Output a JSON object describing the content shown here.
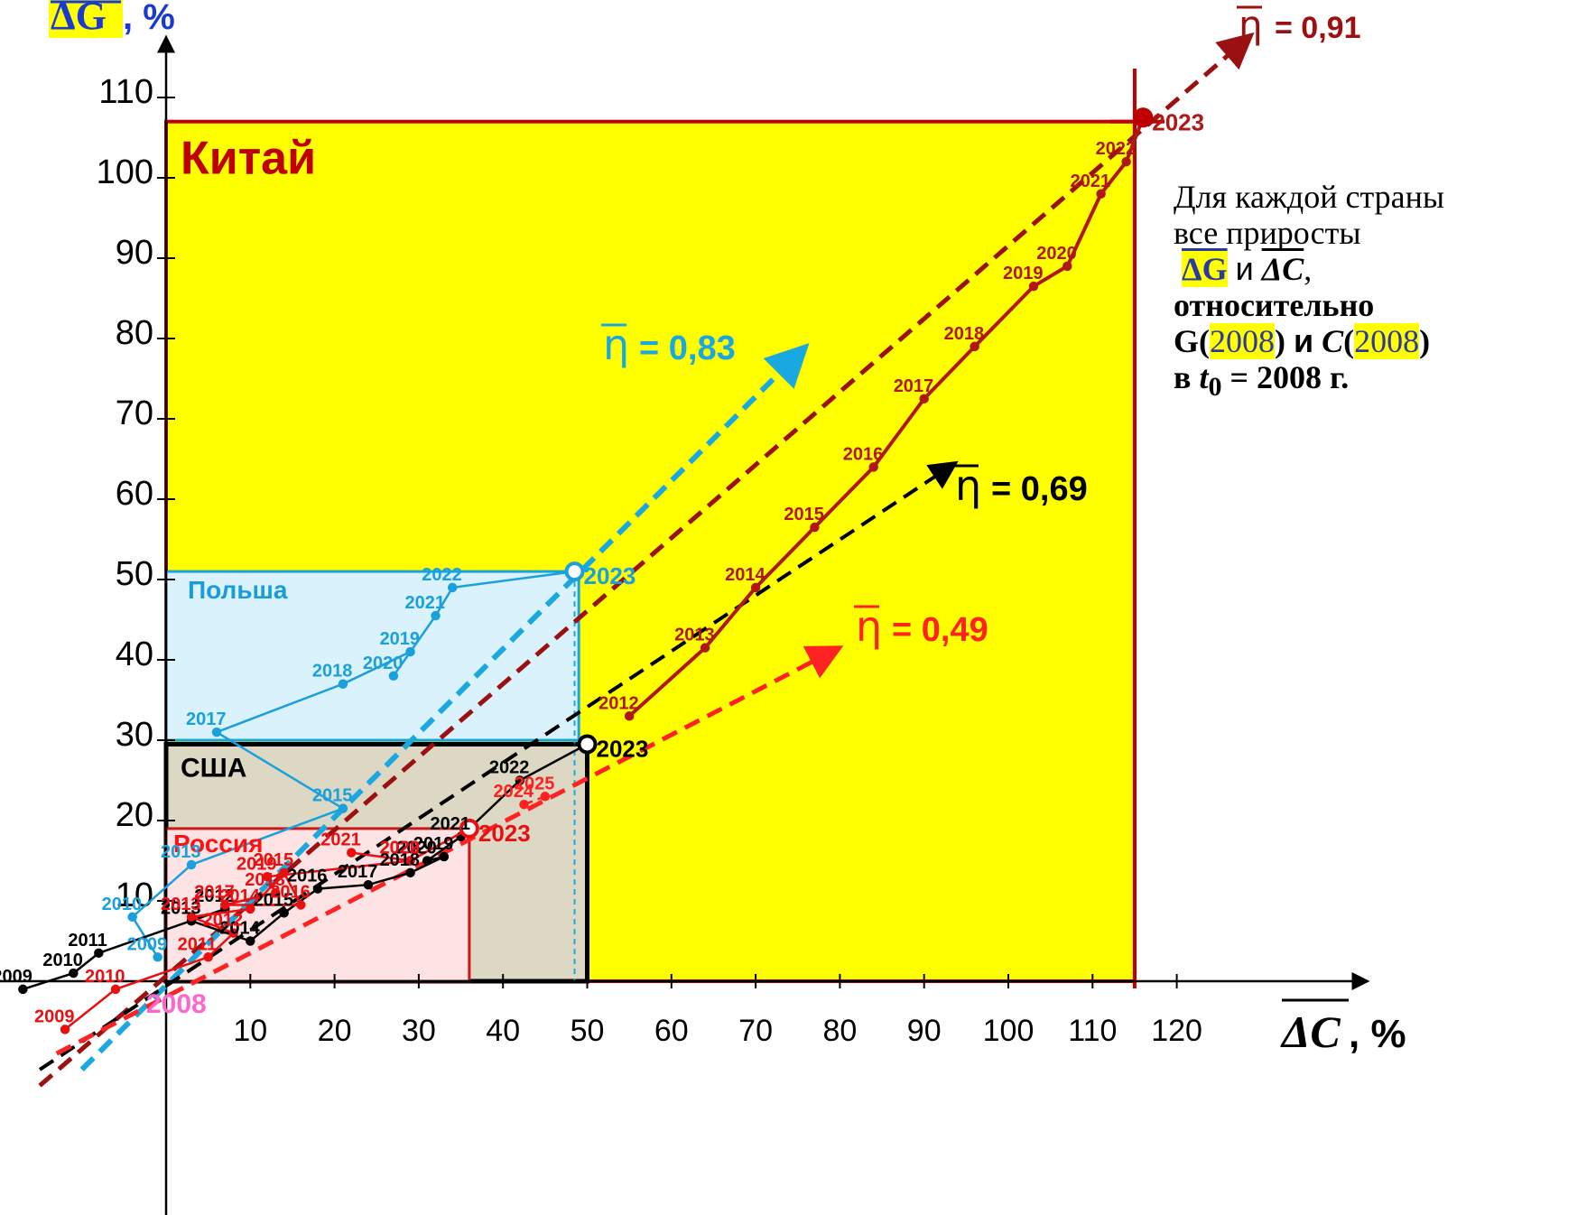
{
  "chart_data": {
    "type": "line",
    "xlabel": "ΔC, %",
    "ylabel": "ΔG, %",
    "xlim": [
      -20,
      135
    ],
    "ylim": [
      -11,
      120
    ],
    "x_ticks": [
      10,
      20,
      30,
      40,
      50,
      60,
      70,
      80,
      90,
      100,
      110,
      120
    ],
    "y_ticks": [
      10,
      20,
      30,
      40,
      50,
      60,
      70,
      80,
      90,
      100,
      110
    ],
    "base_year_label": "2008",
    "regions": [
      {
        "name": "Китай",
        "x": [
          0,
          115
        ],
        "y": [
          0,
          107
        ],
        "color": "#ffff00",
        "edge": "#c00000",
        "label_color": "#c00000"
      },
      {
        "name": "Польша",
        "x": [
          0,
          49
        ],
        "y": [
          30,
          51
        ],
        "color": "#d9f2fb",
        "edge": "#1aa3dc",
        "label_color": "#1a9cd8"
      },
      {
        "name": "США",
        "x": [
          0,
          50
        ],
        "y": [
          0,
          29.5
        ],
        "color": "#ddd8c4",
        "edge": "#000000",
        "label_color": "#000000"
      },
      {
        "name": "Россия",
        "x": [
          0,
          36
        ],
        "y": [
          0,
          19
        ],
        "color": "#fde3e3",
        "edge": "#c81818",
        "label_color": "#ff1111"
      }
    ],
    "trends": [
      {
        "name": "η = 0,91",
        "label": "= 0,91",
        "color": "#9b1010",
        "x": [
          -15,
          128
        ],
        "y": [
          -13,
          117
        ]
      },
      {
        "name": "η = 0,83",
        "label": "= 0,83",
        "color": "#1aa8e0",
        "x": [
          -10,
          75
        ],
        "y": [
          -11,
          78
        ]
      },
      {
        "name": "η = 0,69",
        "label": "= 0,69",
        "color": "#000000",
        "x": [
          -15,
          93
        ],
        "y": [
          -11,
          64
        ]
      },
      {
        "name": "η = 0,49",
        "label": "= 0,49",
        "color": "#ff2222",
        "x": [
          -13,
          79
        ],
        "y": [
          -9,
          41
        ]
      }
    ],
    "series": [
      {
        "name": "Китай",
        "color": "#b01818",
        "years": [
          "2012",
          "2013",
          "2014",
          "2015",
          "2016",
          "2017",
          "2018",
          "2019",
          "2020",
          "2021",
          "2022",
          "2023"
        ],
        "x": [
          55,
          64,
          70,
          77,
          84,
          90,
          96,
          103,
          107,
          111,
          114,
          116
        ],
        "y": [
          33,
          41.5,
          49,
          56.5,
          64,
          72.5,
          79,
          86.5,
          89,
          98,
          102,
          107.5
        ]
      },
      {
        "name": "Польша",
        "color": "#1aa0dc",
        "years": [
          "2009",
          "2010",
          "2013",
          "2015",
          "2017",
          "2018",
          "2019",
          "2020",
          "2021",
          "2022",
          "2023"
        ],
        "x": [
          -1,
          -4,
          3,
          21,
          6,
          21,
          29,
          27,
          32,
          34,
          48.5
        ],
        "y": [
          3,
          8,
          14.5,
          21.5,
          31,
          37,
          41,
          38,
          45.5,
          49,
          51
        ]
      },
      {
        "name": "США",
        "color": "#000000",
        "years": [
          "2009",
          "2010",
          "2011",
          "2012",
          "2013",
          "2014",
          "2015",
          "2016",
          "2017",
          "2018",
          "2019",
          "2020",
          "2021",
          "2022",
          "2023"
        ],
        "x": [
          -17,
          -11,
          -8,
          7,
          3,
          10,
          14,
          18,
          24,
          29,
          33,
          31,
          35,
          42,
          50
        ],
        "y": [
          -1,
          1,
          3.5,
          9,
          7.5,
          5,
          8.5,
          11.5,
          12,
          13.5,
          15.5,
          15,
          18,
          25,
          29.5
        ]
      },
      {
        "name": "Россия",
        "color": "#e81010",
        "years": [
          "2009",
          "2010",
          "2011",
          "2012",
          "2013",
          "2014",
          "2015",
          "2016",
          "2017",
          "2018",
          "2019",
          "2020",
          "2021",
          "2022",
          "2023"
        ],
        "x": [
          -12,
          -6,
          5,
          8,
          3,
          10,
          14,
          16,
          7,
          13,
          12,
          29,
          22,
          29,
          36
        ],
        "y": [
          -6,
          -1,
          3,
          6,
          8,
          9,
          13.5,
          9.5,
          9.5,
          11,
          13,
          15,
          16,
          15,
          19
        ]
      },
      {
        "name": "Россия 2024–2025",
        "color": "#ff2020",
        "years": [
          "2024",
          "2025"
        ],
        "x": [
          42.5,
          45
        ],
        "y": [
          22,
          23
        ]
      }
    ]
  },
  "note": {
    "line1": "Для каждой страны",
    "line2": "все приросты",
    "dg": "ΔG",
    "and": "и",
    "dc": "ΔC",
    "comma": ",",
    "line4": "относительно",
    "g": "G",
    "year_a": "2008",
    "and_bold": "и",
    "c": "C",
    "year_b": "2008",
    "line6_prefix": "в",
    "t": "t",
    "sub": "0",
    "line6_suffix": "= 2008 г."
  },
  "colors": {
    "axis": "#000000",
    "highlight": "#ffff00",
    "base_year": "#ff66cc"
  }
}
